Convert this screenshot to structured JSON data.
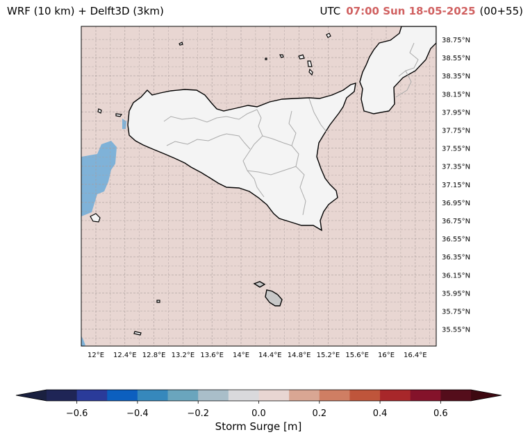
{
  "header": {
    "left_title": "WRF (10 km) + Delft3D (3km)",
    "utc_label": "UTC",
    "time": "07:00 Sun 18-05-2025",
    "lead": "(00+55)"
  },
  "map": {
    "lon_ticks": [
      "12°E",
      "12.4°E",
      "12.8°E",
      "13.2°E",
      "13.6°E",
      "14°E",
      "14.4°E",
      "14.8°E",
      "15.2°E",
      "15.6°E",
      "16°E",
      "16.4°E"
    ],
    "lat_ticks": [
      "38.75°N",
      "38.55°N",
      "38.35°N",
      "38.15°N",
      "37.95°N",
      "37.75°N",
      "37.55°N",
      "37.35°N",
      "37.15°N",
      "36.95°N",
      "36.75°N",
      "36.55°N",
      "36.35°N",
      "36.15°N",
      "35.95°N",
      "35.75°N",
      "35.55°N"
    ],
    "colors": {
      "sea_background": "#e8d6d2",
      "land": "#f4f4f4",
      "negative_surge": "#7fb2d8",
      "grid": "#a89c9a",
      "coastline": "#000000",
      "admin_borders": "#aaaaaa"
    }
  },
  "colorbar": {
    "label": "Storm Surge [m]",
    "tick_labels": [
      "−0.6",
      "−0.4",
      "−0.2",
      "0.0",
      "0.2",
      "0.4",
      "0.6"
    ],
    "bins": [
      {
        "from": -0.7,
        "to": -0.6,
        "color": "#1f2556"
      },
      {
        "from": -0.6,
        "to": -0.5,
        "color": "#2a3b9a"
      },
      {
        "from": -0.5,
        "to": -0.4,
        "color": "#0c5fbf"
      },
      {
        "from": -0.4,
        "to": -0.3,
        "color": "#3688bc"
      },
      {
        "from": -0.3,
        "to": -0.2,
        "color": "#6aa5bd"
      },
      {
        "from": -0.2,
        "to": -0.1,
        "color": "#a9bec9"
      },
      {
        "from": -0.1,
        "to": 0.0,
        "color": "#d9d9dc"
      },
      {
        "from": 0.0,
        "to": 0.1,
        "color": "#e8d6d2"
      },
      {
        "from": 0.1,
        "to": 0.2,
        "color": "#d9a693"
      },
      {
        "from": 0.2,
        "to": 0.3,
        "color": "#cf7e63"
      },
      {
        "from": 0.3,
        "to": 0.4,
        "color": "#bf553b"
      },
      {
        "from": 0.4,
        "to": 0.5,
        "color": "#a8272a"
      },
      {
        "from": 0.5,
        "to": 0.6,
        "color": "#84122a"
      },
      {
        "from": 0.6,
        "to": 0.7,
        "color": "#540d1b"
      }
    ],
    "under_color": "#1a2040",
    "over_color": "#3d0810"
  }
}
